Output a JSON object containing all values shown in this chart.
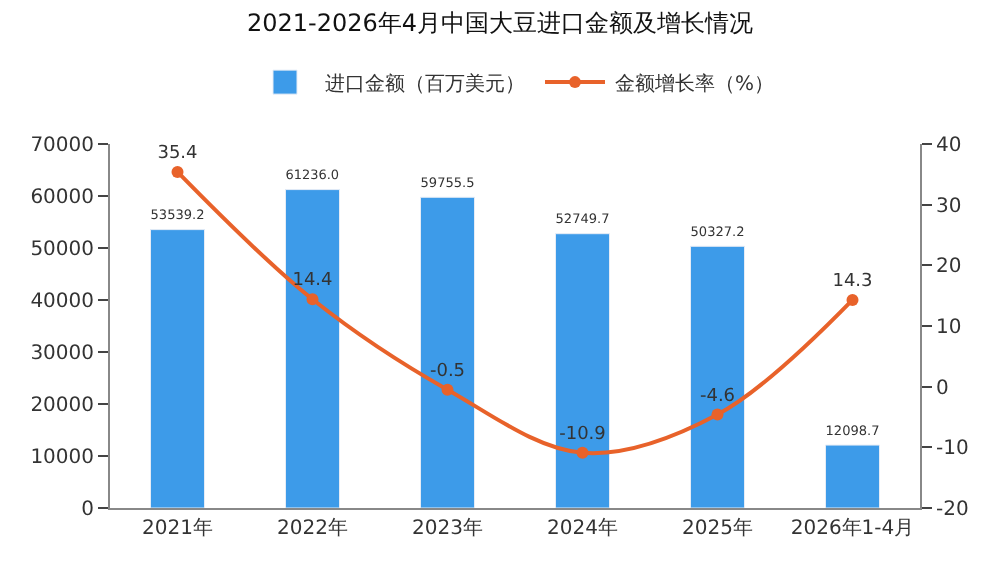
{
  "chart_data": {
    "type": "bar",
    "title": "2021-2026年4月中国大豆进口金额及增长情况",
    "categories": [
      "2021年",
      "2022年",
      "2023年",
      "2024年",
      "2025年",
      "2026年1-4月"
    ],
    "series": [
      {
        "name": "进口金额（百万美元）",
        "color": "#3d9be9",
        "values": [
          53539.2,
          61236.0,
          59755.5,
          52749.7,
          50327.2,
          12098.7
        ],
        "value_labels": [
          "53539.2",
          "61236.0",
          "59755.5",
          "52749.7",
          "50327.2",
          "12098.7"
        ]
      },
      {
        "name": "金额增长率（%）",
        "type": "line",
        "axis": "y2",
        "color": "#e8622a",
        "marker": "circle",
        "values": [
          35.4,
          14.4,
          -0.5,
          -10.9,
          -4.6,
          14.3
        ],
        "value_labels": [
          "35.4",
          "14.4",
          "-0.5",
          "-10.9",
          "-4.6",
          "14.3"
        ]
      }
    ],
    "ylim": [
      0,
      70000
    ],
    "yticks": [
      0,
      10000,
      20000,
      30000,
      40000,
      50000,
      60000,
      70000
    ],
    "y2lim": [
      -20,
      40
    ],
    "y2ticks": [
      -20,
      -10,
      0,
      10,
      20,
      30,
      40
    ],
    "legend": "top"
  }
}
